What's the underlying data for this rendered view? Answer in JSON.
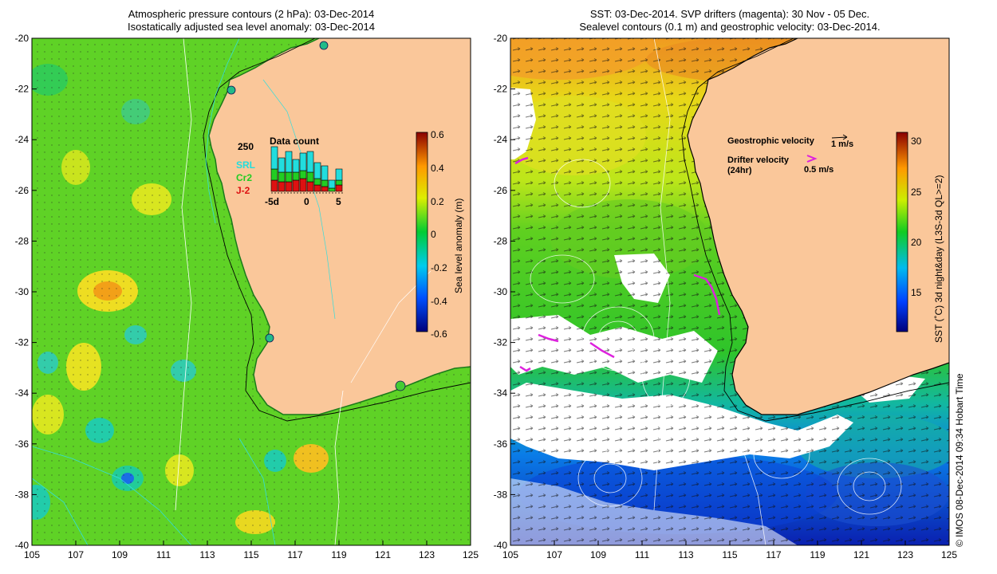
{
  "left_panel": {
    "title_line1": "Atmospheric pressure contours (2 hPa): 03-Dec-2014",
    "title_line2": "Isostatically adjusted sea level anomaly: 03-Dec-2014",
    "colorbar_label": "Sea level anomaly (m)",
    "colorbar_ticks": [
      "0.6",
      "0.4",
      "0.2",
      "0",
      "-0.2",
      "-0.4",
      "-0.6"
    ],
    "inset": {
      "title": "Data count",
      "max_label": "250",
      "series_labels": [
        "SRL",
        "Cr2",
        "J-2"
      ],
      "series_colors": [
        "#22dddd",
        "#22cc22",
        "#dd1111"
      ],
      "x_ticks": [
        "-5d",
        "0",
        "5"
      ]
    }
  },
  "right_panel": {
    "title_line1": "SST: 03-Dec-2014. SVP drifters (magenta): 30 Nov - 05 Dec.",
    "title_line2": "Sealevel contours (0.1 m) and geostrophic velocity: 03-Dec-2014.",
    "colorbar_label": "SST (˚C) 3d night&day (L3S-3d QL>=2)",
    "colorbar_ticks": [
      "30",
      "25",
      "20",
      "15"
    ],
    "geostrophic_label": "Geostrophic velocity",
    "geostrophic_unit": "1 m/s",
    "drifter_label_line1": "Drifter velocity",
    "drifter_label_line2": "(24hr)",
    "drifter_unit": "0.5 m/s"
  },
  "axes": {
    "x_ticks": [
      "105",
      "107",
      "109",
      "111",
      "113",
      "115",
      "117",
      "119",
      "121",
      "123",
      "125"
    ],
    "y_ticks": [
      "-20",
      "-22",
      "-24",
      "-26",
      "-28",
      "-30",
      "-32",
      "-34",
      "-36",
      "-38",
      "-40"
    ]
  },
  "credit": "© IMOS 08-Dec-2014 09:34 Hobart Time"
}
